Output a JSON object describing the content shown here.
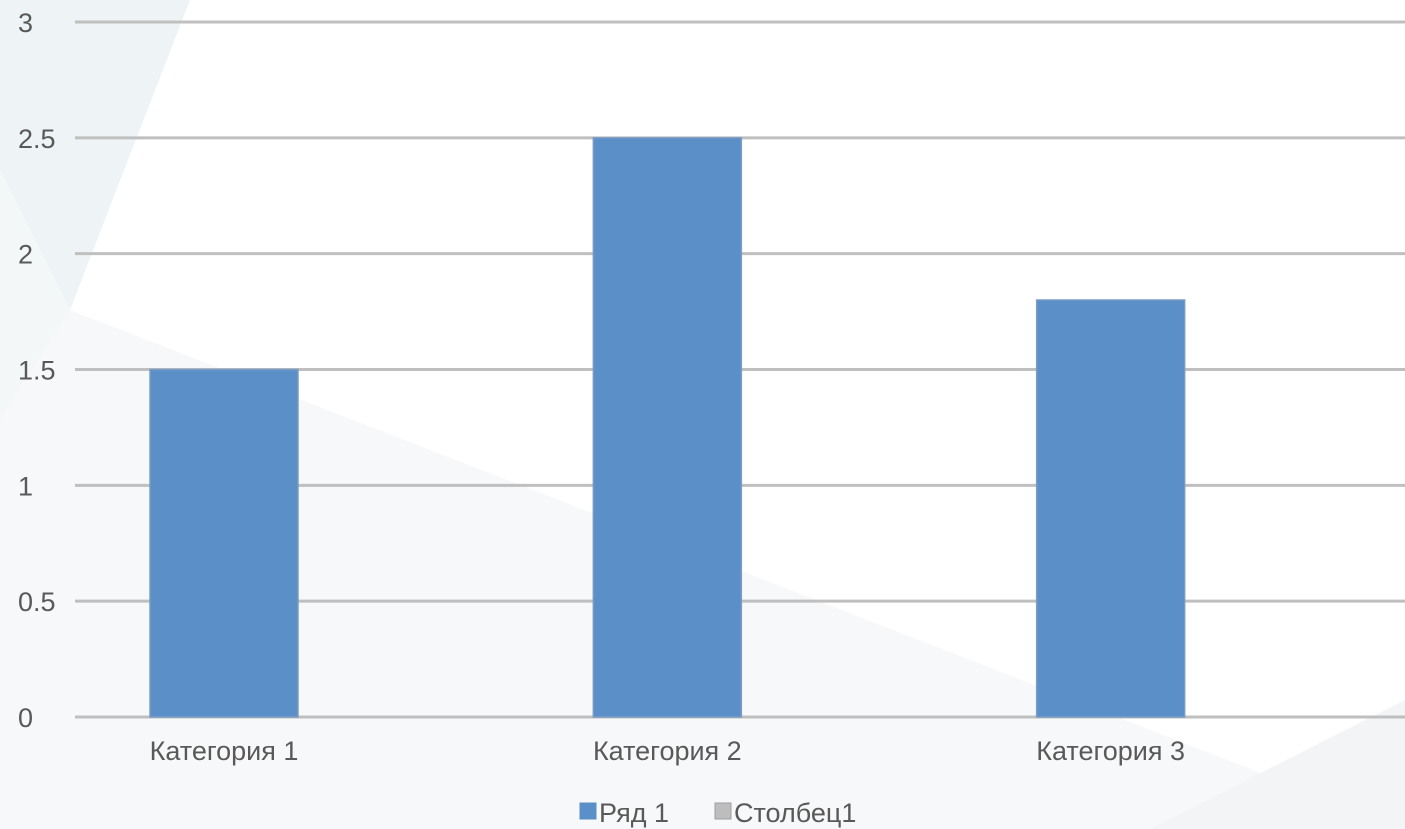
{
  "chart_data": {
    "type": "bar",
    "title": "",
    "xlabel": "",
    "ylabel": "",
    "categories": [
      "Категория 1",
      "Категория 2",
      "Категория 3"
    ],
    "series": [
      {
        "name": "Ряд 1",
        "values": [
          1.5,
          2.5,
          1.8
        ],
        "color": "#5B8FC8"
      },
      {
        "name": "Столбец1",
        "values": [
          null,
          null,
          null
        ],
        "color": "#BDBDBD"
      }
    ],
    "ylim": [
      0,
      3
    ],
    "yticks": [
      "0",
      "0.5",
      "1",
      "1.5",
      "2",
      "2.5",
      "3"
    ],
    "grid": true,
    "legend": "bottom"
  },
  "colors": {
    "gridline": "#BFBFBF",
    "axis_text": "#595959",
    "bar_stroke": "#7A9CC4"
  }
}
